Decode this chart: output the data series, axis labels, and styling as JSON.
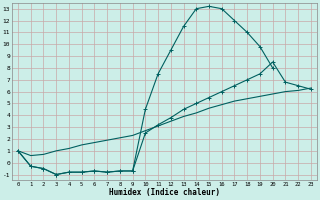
{
  "bg_color": "#cceee8",
  "grid_color": "#c8a8a8",
  "line_color": "#006060",
  "xlabel": "Humidex (Indice chaleur)",
  "xlim": [
    -0.5,
    23.5
  ],
  "ylim": [
    -1.5,
    13.5
  ],
  "xticks": [
    0,
    1,
    2,
    3,
    4,
    5,
    6,
    7,
    8,
    9,
    10,
    11,
    12,
    13,
    14,
    15,
    16,
    17,
    18,
    19,
    20,
    21,
    22,
    23
  ],
  "yticks": [
    -1,
    0,
    1,
    2,
    3,
    4,
    5,
    6,
    7,
    8,
    9,
    10,
    11,
    12,
    13
  ],
  "line1_x": [
    0,
    1,
    2,
    3,
    4,
    5,
    6,
    7,
    8,
    9,
    10,
    11,
    12,
    13,
    14,
    15,
    16,
    17,
    18,
    19,
    20
  ],
  "line1_y": [
    1.0,
    -0.3,
    -0.5,
    -1.0,
    -0.8,
    -0.8,
    -0.7,
    -0.8,
    -0.7,
    -0.7,
    4.5,
    7.5,
    9.5,
    11.5,
    13.0,
    13.2,
    13.0,
    12.0,
    11.0,
    9.8,
    8.0
  ],
  "line2_x": [
    0,
    1,
    2,
    3,
    4,
    5,
    6,
    7,
    8,
    9,
    10,
    11,
    12,
    13,
    14,
    15,
    16,
    17,
    18,
    19,
    20,
    21,
    22,
    23
  ],
  "line2_y": [
    1.0,
    -0.3,
    -0.5,
    -1.0,
    -0.8,
    -0.8,
    -0.7,
    -0.8,
    -0.7,
    -0.7,
    2.5,
    3.2,
    3.8,
    4.5,
    5.0,
    5.5,
    6.0,
    6.5,
    7.0,
    7.5,
    8.5,
    6.8,
    6.5,
    6.2
  ],
  "line3_x": [
    0,
    1,
    2,
    3,
    4,
    5,
    6,
    7,
    8,
    9,
    10,
    11,
    12,
    13,
    14,
    15,
    16,
    17,
    18,
    19,
    20,
    21,
    22,
    23
  ],
  "line3_y": [
    1.0,
    0.6,
    0.7,
    1.0,
    1.2,
    1.5,
    1.7,
    1.9,
    2.1,
    2.3,
    2.7,
    3.1,
    3.5,
    3.9,
    4.2,
    4.6,
    4.9,
    5.2,
    5.4,
    5.6,
    5.8,
    6.0,
    6.1,
    6.3
  ],
  "marker_line1": true,
  "marker_line2": true,
  "marker_line3": false
}
